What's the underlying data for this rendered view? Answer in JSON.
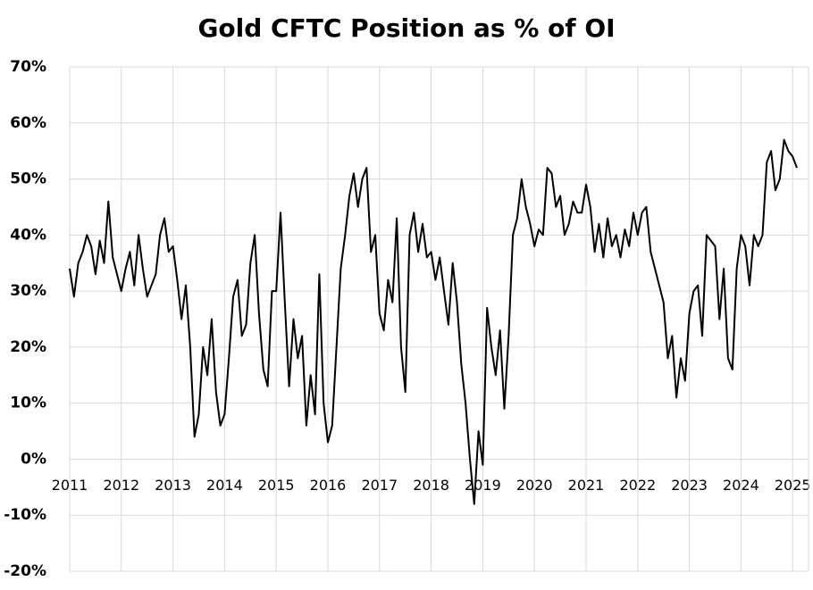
{
  "chart_data": {
    "type": "line",
    "title": "Gold CFTC Position as % of OI",
    "categories": [
      "2011",
      null,
      null,
      null,
      null,
      null,
      null,
      null,
      null,
      null,
      null,
      null,
      "2012",
      null,
      null,
      null,
      null,
      null,
      null,
      null,
      null,
      null,
      null,
      null,
      "2013",
      null,
      null,
      null,
      null,
      null,
      null,
      null,
      null,
      null,
      null,
      null,
      "2014",
      null,
      null,
      null,
      null,
      null,
      null,
      null,
      null,
      null,
      null,
      null,
      "2015",
      null,
      null,
      null,
      null,
      null,
      null,
      null,
      null,
      null,
      null,
      null,
      "2016",
      null,
      null,
      null,
      null,
      null,
      null,
      null,
      null,
      null,
      null,
      null,
      "2017",
      null,
      null,
      null,
      null,
      null,
      null,
      null,
      null,
      null,
      null,
      null,
      "2018",
      null,
      null,
      null,
      null,
      null,
      null,
      null,
      null,
      null,
      null,
      null,
      "2019",
      null,
      null,
      null,
      null,
      null,
      null,
      null,
      null,
      null,
      null,
      null,
      "2020",
      null,
      null,
      null,
      null,
      null,
      null,
      null,
      null,
      null,
      null,
      null,
      "2021",
      null,
      null,
      null,
      null,
      null,
      null,
      null,
      null,
      null,
      null,
      null,
      "2022",
      null,
      null,
      null,
      null,
      null,
      null,
      null,
      null,
      null,
      null,
      null,
      "2023",
      null,
      null,
      null,
      null,
      null,
      null,
      null,
      null,
      null,
      null,
      null,
      "2024",
      null,
      null,
      null,
      null,
      null,
      null,
      null,
      null,
      null,
      null,
      null,
      "2025",
      null
    ],
    "values": [
      34,
      29,
      35,
      37,
      40,
      38,
      33,
      39,
      35,
      46,
      36,
      33,
      30,
      34,
      37,
      31,
      40,
      34,
      29,
      31,
      33,
      40,
      43,
      37,
      38,
      32,
      25,
      31,
      20,
      4,
      8,
      20,
      15,
      25,
      12,
      6,
      8,
      18,
      29,
      32,
      22,
      24,
      35,
      40,
      26,
      16,
      13,
      30,
      30,
      44,
      28,
      13,
      25,
      18,
      22,
      6,
      15,
      8,
      33,
      10,
      3,
      6,
      20,
      34,
      40,
      47,
      51,
      45,
      50,
      52,
      37,
      40,
      26,
      23,
      32,
      28,
      43,
      20,
      12,
      40,
      44,
      37,
      42,
      36,
      37,
      32,
      36,
      30,
      24,
      35,
      28,
      17,
      10,
      0,
      -8,
      5,
      -1,
      27,
      20,
      15,
      23,
      9,
      22,
      40,
      43,
      50,
      45,
      42,
      38,
      41,
      40,
      52,
      51,
      45,
      47,
      40,
      42,
      46,
      44,
      44,
      49,
      45,
      37,
      42,
      36,
      43,
      38,
      40,
      36,
      41,
      38,
      44,
      40,
      44,
      45,
      37,
      34,
      31,
      28,
      18,
      22,
      11,
      18,
      14,
      26,
      30,
      31,
      22,
      40,
      39,
      38,
      25,
      34,
      18,
      16,
      34,
      40,
      38,
      31,
      40,
      38,
      40,
      53,
      55,
      48,
      50,
      57,
      55,
      54,
      52
    ],
    "color": "#000000",
    "ylim": [
      -20,
      70
    ],
    "yticks": [
      {
        "value": -20,
        "label": "-20%"
      },
      {
        "value": -10,
        "label": "-10%"
      },
      {
        "value": 0,
        "label": "0%"
      },
      {
        "value": 10,
        "label": "10%"
      },
      {
        "value": 20,
        "label": "20%"
      },
      {
        "value": 30,
        "label": "30%"
      },
      {
        "value": 40,
        "label": "40%"
      },
      {
        "value": 50,
        "label": "50%"
      },
      {
        "value": 60,
        "label": "60%"
      },
      {
        "value": 70,
        "label": "70%"
      }
    ],
    "grid": true
  }
}
